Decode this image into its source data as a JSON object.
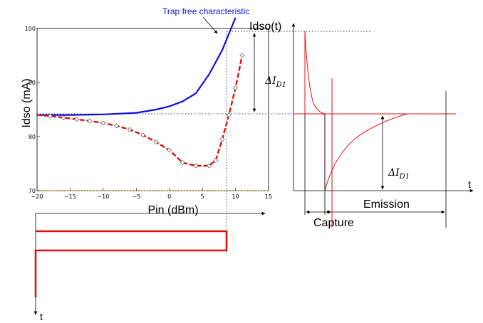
{
  "chart_data": {
    "type": "line",
    "xlabel": "Pin (dBm)",
    "ylabel": "Idso (mA)",
    "xlim": [
      -20,
      15
    ],
    "ylim": [
      70,
      100
    ],
    "x_ticks": [
      "−20",
      "−15",
      "−10",
      "−5",
      "0",
      "5",
      "10",
      "15"
    ],
    "y_ticks": [
      "70",
      "80",
      "90",
      "100"
    ],
    "annotation": "Trap free characteristic",
    "series": [
      {
        "color": "#1010d8",
        "x": [
          -20,
          -15,
          -10,
          -5,
          -2,
          0,
          2,
          4,
          6,
          8,
          9,
          10
        ],
        "y": [
          84,
          84,
          84.1,
          84.4,
          85,
          85.6,
          86.5,
          88,
          91.5,
          96,
          99,
          102
        ]
      },
      {
        "color": "#e01010",
        "x": [
          -20,
          -18,
          -16,
          -14,
          -12,
          -10,
          -8,
          -6,
          -4,
          -2,
          0,
          2,
          4,
          6,
          7,
          8,
          9,
          10,
          11
        ],
        "y": [
          84,
          83.8,
          83.5,
          83.2,
          82.9,
          82.5,
          82,
          81.3,
          80.3,
          79,
          77.5,
          75.2,
          74.6,
          74.6,
          75.6,
          79.5,
          84,
          89,
          95
        ]
      }
    ],
    "markers_x": [
      -18,
      -16,
      -14,
      -12,
      -10,
      -8,
      -6,
      -4,
      -2,
      0,
      2,
      4,
      6,
      7,
      8,
      9,
      10,
      11
    ]
  },
  "right_panel": {
    "ylabel": "Idso(t)",
    "delta_upper": "ΔI",
    "delta_lower": "ΔI",
    "delta_sub": "D1",
    "t_label": "t",
    "emission": "Emission",
    "capture": "Capture"
  },
  "bottom_panel": {
    "t_label": "t"
  }
}
